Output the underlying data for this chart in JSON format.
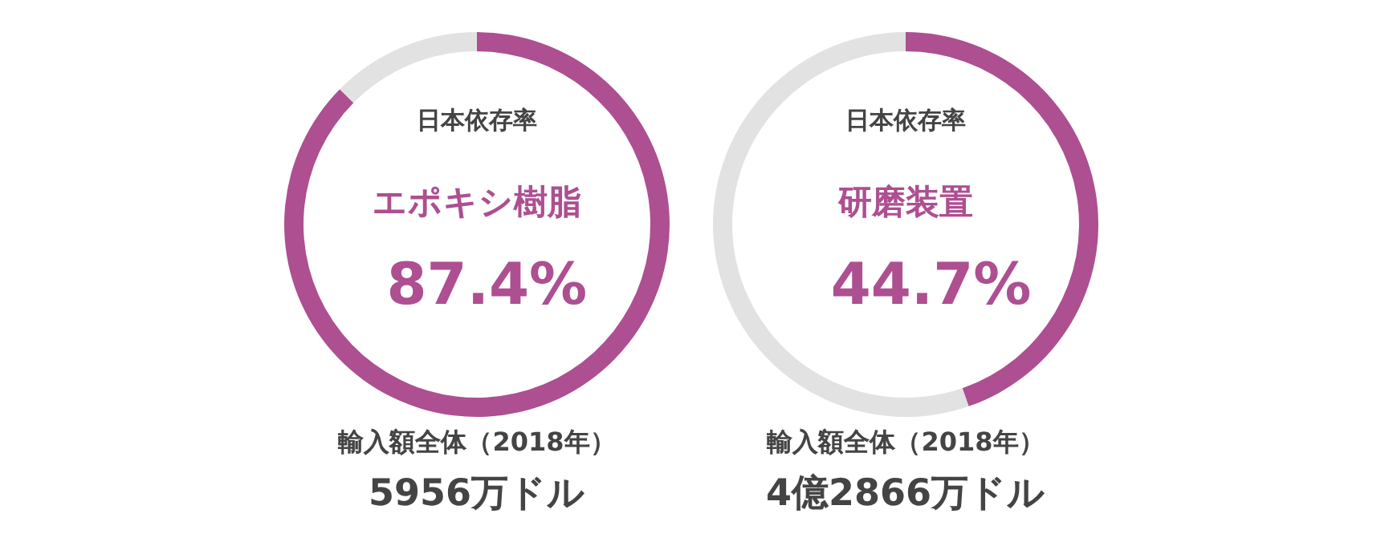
{
  "chart_data": [
    {
      "type": "donut",
      "subtitle": "日本依存率",
      "title": "エポキシ樹脂",
      "categories": [
        null,
        null
      ],
      "values": [
        87.4,
        12.6
      ],
      "colors": [
        "#ad4f91",
        "#e2e2e2"
      ],
      "value_labels": [
        "87.4%",
        null
      ],
      "legend": false,
      "annotations": [
        "輸入額全体（2018年）",
        "5956万ドル"
      ]
    },
    {
      "type": "donut",
      "subtitle": "日本依存率",
      "title": "研磨装置",
      "categories": [
        null,
        null
      ],
      "values": [
        44.7,
        55.3
      ],
      "colors": [
        "#ad4f91",
        "#e2e2e2"
      ],
      "value_labels": [
        "44.7%",
        null
      ],
      "legend": false,
      "annotations": [
        "輸入額全体（2018年）",
        "4億2866万ドル"
      ]
    }
  ]
}
